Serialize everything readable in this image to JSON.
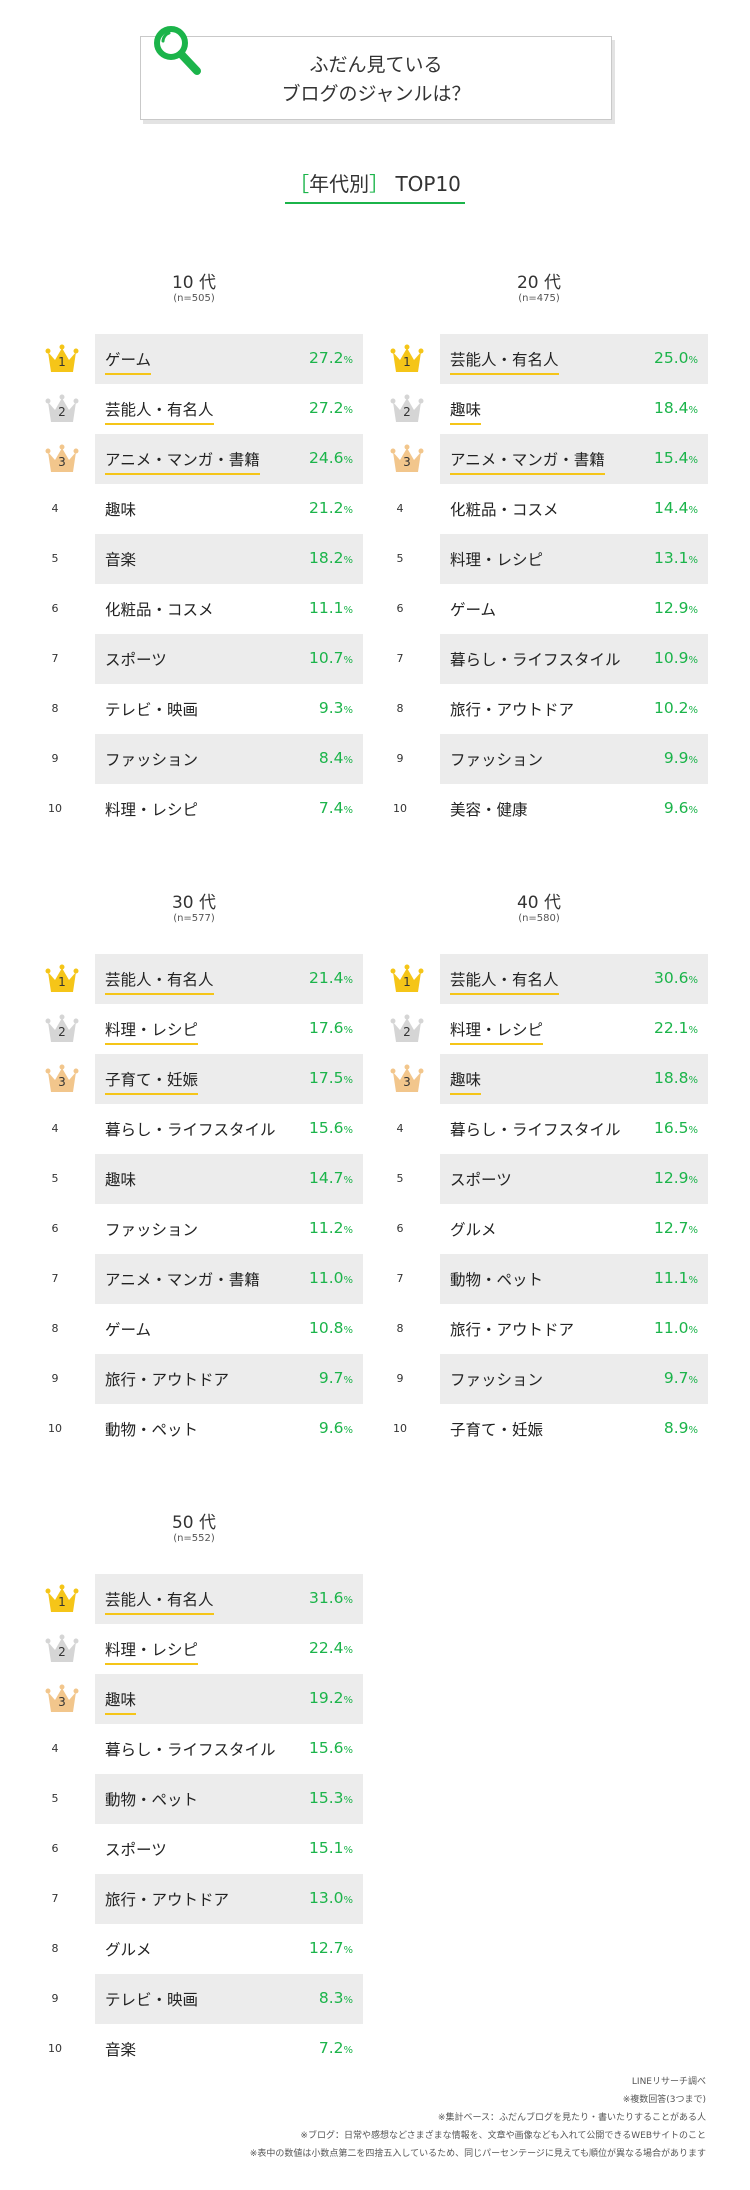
{
  "header": {
    "title_line1": "ふだん見ている",
    "title_line2": "ブログのジャンルは？"
  },
  "subtitle": {
    "open": "［",
    "text": "年代別",
    "close": "］",
    "suffix": "TOP10"
  },
  "colors": {
    "accent_green": "#1bb44a",
    "gold": "#f5c518",
    "silver": "#d5d5d5",
    "bronze": "#f2c68c",
    "row_shade": "#ececec"
  },
  "sections": [
    {
      "title": "10 代",
      "n": "(n=505)",
      "rows": [
        {
          "rank": "1",
          "name": "ゲーム",
          "value": "27.2",
          "pct": "%"
        },
        {
          "rank": "2",
          "name": "芸能人・有名人",
          "value": "27.2",
          "pct": "%"
        },
        {
          "rank": "3",
          "name": "アニメ・マンガ・書籍",
          "value": "24.6",
          "pct": "%"
        },
        {
          "rank": "4",
          "name": "趣味",
          "value": "21.2",
          "pct": "%"
        },
        {
          "rank": "5",
          "name": "音楽",
          "value": "18.2",
          "pct": "%"
        },
        {
          "rank": "6",
          "name": "化粧品・コスメ",
          "value": "11.1",
          "pct": "%"
        },
        {
          "rank": "7",
          "name": "スポーツ",
          "value": "10.7",
          "pct": "%"
        },
        {
          "rank": "8",
          "name": "テレビ・映画",
          "value": "9.3",
          "pct": "%"
        },
        {
          "rank": "9",
          "name": "ファッション",
          "value": "8.4",
          "pct": "%"
        },
        {
          "rank": "10",
          "name": "料理・レシピ",
          "value": "7.4",
          "pct": "%"
        }
      ]
    },
    {
      "title": "20 代",
      "n": "(n=475)",
      "rows": [
        {
          "rank": "1",
          "name": "芸能人・有名人",
          "value": "25.0",
          "pct": "%"
        },
        {
          "rank": "2",
          "name": "趣味",
          "value": "18.4",
          "pct": "%"
        },
        {
          "rank": "3",
          "name": "アニメ・マンガ・書籍",
          "value": "15.4",
          "pct": "%"
        },
        {
          "rank": "4",
          "name": "化粧品・コスメ",
          "value": "14.4",
          "pct": "%"
        },
        {
          "rank": "5",
          "name": "料理・レシピ",
          "value": "13.1",
          "pct": "%"
        },
        {
          "rank": "6",
          "name": "ゲーム",
          "value": "12.9",
          "pct": "%"
        },
        {
          "rank": "7",
          "name": "暮らし・ライフスタイル",
          "value": "10.9",
          "pct": "%"
        },
        {
          "rank": "8",
          "name": "旅行・アウトドア",
          "value": "10.2",
          "pct": "%"
        },
        {
          "rank": "9",
          "name": "ファッション",
          "value": "9.9",
          "pct": "%"
        },
        {
          "rank": "10",
          "name": "美容・健康",
          "value": "9.6",
          "pct": "%"
        }
      ]
    },
    {
      "title": "30 代",
      "n": "(n=577)",
      "rows": [
        {
          "rank": "1",
          "name": "芸能人・有名人",
          "value": "21.4",
          "pct": "%"
        },
        {
          "rank": "2",
          "name": "料理・レシピ",
          "value": "17.6",
          "pct": "%"
        },
        {
          "rank": "3",
          "name": "子育て・妊娠",
          "value": "17.5",
          "pct": "%"
        },
        {
          "rank": "4",
          "name": "暮らし・ライフスタイル",
          "value": "15.6",
          "pct": "%"
        },
        {
          "rank": "5",
          "name": "趣味",
          "value": "14.7",
          "pct": "%"
        },
        {
          "rank": "6",
          "name": "ファッション",
          "value": "11.2",
          "pct": "%"
        },
        {
          "rank": "7",
          "name": "アニメ・マンガ・書籍",
          "value": "11.0",
          "pct": "%"
        },
        {
          "rank": "8",
          "name": "ゲーム",
          "value": "10.8",
          "pct": "%"
        },
        {
          "rank": "9",
          "name": "旅行・アウトドア",
          "value": "9.7",
          "pct": "%"
        },
        {
          "rank": "10",
          "name": "動物・ペット",
          "value": "9.6",
          "pct": "%"
        }
      ]
    },
    {
      "title": "40 代",
      "n": "(n=580)",
      "rows": [
        {
          "rank": "1",
          "name": "芸能人・有名人",
          "value": "30.6",
          "pct": "%"
        },
        {
          "rank": "2",
          "name": "料理・レシピ",
          "value": "22.1",
          "pct": "%"
        },
        {
          "rank": "3",
          "name": "趣味",
          "value": "18.8",
          "pct": "%"
        },
        {
          "rank": "4",
          "name": "暮らし・ライフスタイル",
          "value": "16.5",
          "pct": "%"
        },
        {
          "rank": "5",
          "name": "スポーツ",
          "value": "12.9",
          "pct": "%"
        },
        {
          "rank": "6",
          "name": "グルメ",
          "value": "12.7",
          "pct": "%"
        },
        {
          "rank": "7",
          "name": "動物・ペット",
          "value": "11.1",
          "pct": "%"
        },
        {
          "rank": "8",
          "name": "旅行・アウトドア",
          "value": "11.0",
          "pct": "%"
        },
        {
          "rank": "9",
          "name": "ファッション",
          "value": "9.7",
          "pct": "%"
        },
        {
          "rank": "10",
          "name": "子育て・妊娠",
          "value": "8.9",
          "pct": "%"
        }
      ]
    },
    {
      "title": "50 代",
      "n": "(n=552)",
      "rows": [
        {
          "rank": "1",
          "name": "芸能人・有名人",
          "value": "31.6",
          "pct": "%"
        },
        {
          "rank": "2",
          "name": "料理・レシピ",
          "value": "22.4",
          "pct": "%"
        },
        {
          "rank": "3",
          "name": "趣味",
          "value": "19.2",
          "pct": "%"
        },
        {
          "rank": "4",
          "name": "暮らし・ライフスタイル",
          "value": "15.6",
          "pct": "%"
        },
        {
          "rank": "5",
          "name": "動物・ペット",
          "value": "15.3",
          "pct": "%"
        },
        {
          "rank": "6",
          "name": "スポーツ",
          "value": "15.1",
          "pct": "%"
        },
        {
          "rank": "7",
          "name": "旅行・アウトドア",
          "value": "13.0",
          "pct": "%"
        },
        {
          "rank": "8",
          "name": "グルメ",
          "value": "12.7",
          "pct": "%"
        },
        {
          "rank": "9",
          "name": "テレビ・映画",
          "value": "8.3",
          "pct": "%"
        },
        {
          "rank": "10",
          "name": "音楽",
          "value": "7.2",
          "pct": "%"
        }
      ]
    }
  ],
  "footnotes": [
    "LINEリサーチ調べ",
    "※複数回答(3つまで)",
    "※集計ベース：ふだんブログを見たり・書いたりすることがある人",
    "※ブログ：日常や感想などさまざまな情報を、文章や画像なども入れて公開できるWEBサイトのこと",
    "※表中の数値は小数点第二を四捨五入しているため、同じパーセンテージに見えても順位が異なる場合があります"
  ]
}
